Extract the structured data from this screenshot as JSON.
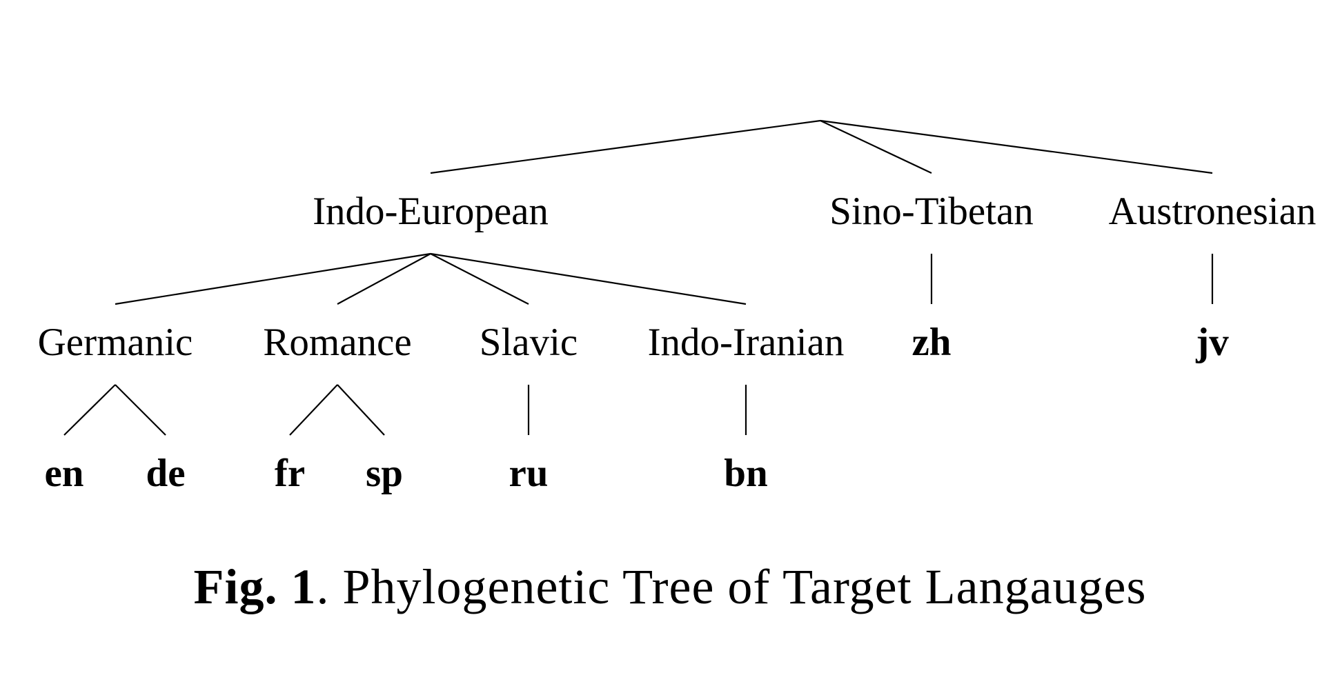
{
  "tree": {
    "families": [
      {
        "id": "indo-european",
        "label": "Indo-European"
      },
      {
        "id": "sino-tibetan",
        "label": "Sino-Tibetan"
      },
      {
        "id": "austronesian",
        "label": "Austronesian"
      }
    ],
    "branches": [
      {
        "id": "germanic",
        "label": "Germanic",
        "parent": "indo-european"
      },
      {
        "id": "romance",
        "label": "Romance",
        "parent": "indo-european"
      },
      {
        "id": "slavic",
        "label": "Slavic",
        "parent": "indo-european"
      },
      {
        "id": "indo-iranian",
        "label": "Indo-Iranian",
        "parent": "indo-european"
      }
    ],
    "languages": [
      {
        "id": "en",
        "label": "en",
        "parent": "germanic"
      },
      {
        "id": "de",
        "label": "de",
        "parent": "germanic"
      },
      {
        "id": "fr",
        "label": "fr",
        "parent": "romance"
      },
      {
        "id": "sp",
        "label": "sp",
        "parent": "romance"
      },
      {
        "id": "ru",
        "label": "ru",
        "parent": "slavic"
      },
      {
        "id": "bn",
        "label": "bn",
        "parent": "indo-iranian"
      },
      {
        "id": "zh",
        "label": "zh",
        "parent": "sino-tibetan"
      },
      {
        "id": "jv",
        "label": "jv",
        "parent": "austronesian"
      }
    ]
  },
  "caption": {
    "fig_label": "Fig. 1",
    "text": ". Phylogenetic Tree of Target Langauges"
  }
}
